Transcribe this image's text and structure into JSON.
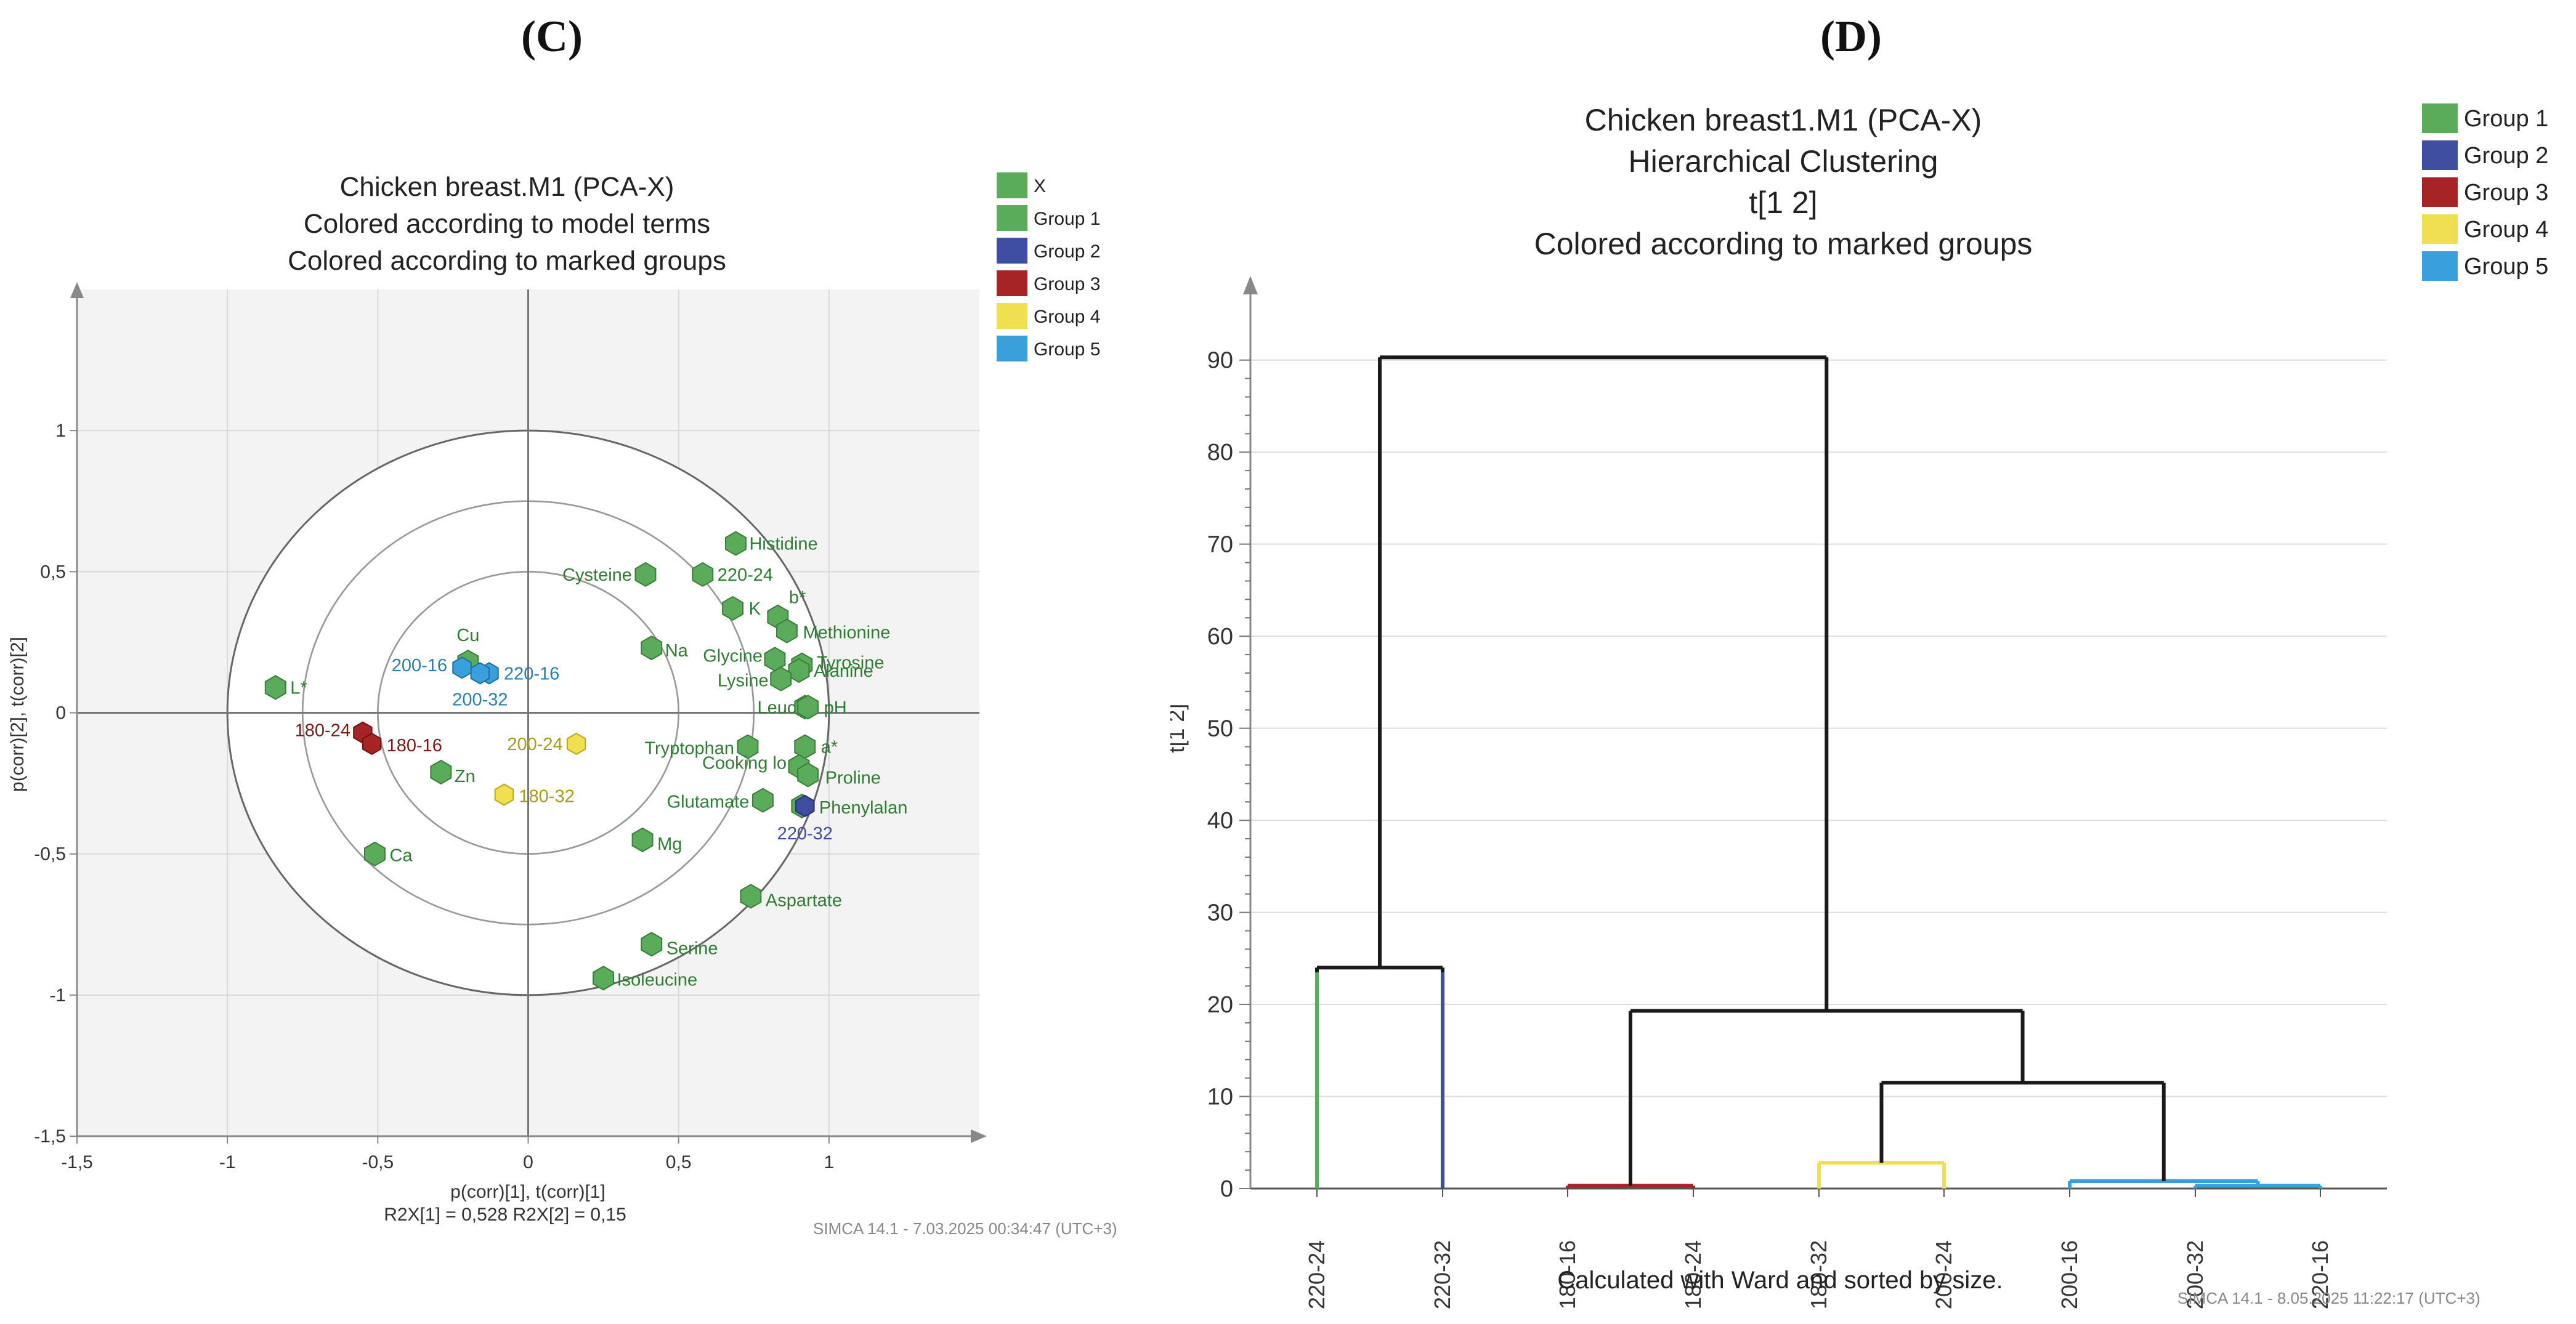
{
  "panel_c": {
    "letter": "(C)",
    "footer": "SIMCA 14.1 - 7.03.2025 00:34:47 (UTC+3)"
  },
  "panel_d": {
    "letter": "(D)",
    "footer": "SIMCA 14.1 - 8.05.2025 11:22:17 (UTC+3)"
  },
  "chart_data": [
    {
      "type": "scatter",
      "title": [
        "Chicken breast.M1 (PCA-X)",
        "Colored according to model terms",
        "Colored according to marked groups"
      ],
      "xlabel": "p(corr)[1], t(corr)[1]",
      "ylabel": "p(corr)[2], t(corr)[2]",
      "stats": "R2X[1] = 0,528  R2X[2] = 0,15",
      "xlim": [
        -1.5,
        1.5
      ],
      "ylim": [
        -1.5,
        1.5
      ],
      "xticks": [
        -1.5,
        -1,
        -0.5,
        0,
        0.5,
        1
      ],
      "yticks": [
        -1.5,
        -1,
        -0.5,
        0,
        0.5,
        1
      ],
      "xtick_labels": [
        "-1,5",
        "-1",
        "-0,5",
        "0",
        "0,5",
        "1"
      ],
      "ytick_labels": [
        "-1,5",
        "-1",
        "-0,5",
        "0",
        "0,5",
        "1"
      ],
      "circles_radius": [
        1.0,
        0.75,
        0.5
      ],
      "colors": {
        "X": "#5aab5a",
        "Group 1": "#5aab5a",
        "Group 2": "#3f4ea0",
        "Group 3": "#a62326",
        "Group 4": "#f0df50",
        "Group 5": "#3aa0dc"
      },
      "label_colors": {
        "X": "#2e7d32",
        "Group 2": "#3f4ea0",
        "Group 3": "#7a1a1a",
        "Group 4": "#a89b1a",
        "Group 5": "#2a7fb0"
      },
      "legend": [
        "X",
        "Group 1",
        "Group 2",
        "Group 3",
        "Group 4",
        "Group 5"
      ],
      "loadings": [
        {
          "label": "Histidine",
          "x": 0.69,
          "y": 0.6
        },
        {
          "label": "Cysteine",
          "x": 0.39,
          "y": 0.49
        },
        {
          "label": "220-24",
          "x": 0.58,
          "y": 0.49
        },
        {
          "label": "b*",
          "x": 0.83,
          "y": 0.34
        },
        {
          "label": "K",
          "x": 0.68,
          "y": 0.37
        },
        {
          "label": "Methionine",
          "x": 0.86,
          "y": 0.29
        },
        {
          "label": "Glycine",
          "x": 0.82,
          "y": 0.19
        },
        {
          "label": "Tyrosine",
          "x": 0.91,
          "y": 0.17
        },
        {
          "label": "Alanine",
          "x": 0.9,
          "y": 0.15
        },
        {
          "label": "Lysine",
          "x": 0.84,
          "y": 0.12
        },
        {
          "label": "Na",
          "x": 0.41,
          "y": 0.23
        },
        {
          "label": "Leucine",
          "x": 0.92,
          "y": 0.02
        },
        {
          "label": "pH",
          "x": 0.93,
          "y": 0.02
        },
        {
          "label": "Cu",
          "x": -0.2,
          "y": 0.18
        },
        {
          "label": "L*",
          "x": -0.84,
          "y": 0.09
        },
        {
          "label": "Tryptophan",
          "x": 0.73,
          "y": -0.12
        },
        {
          "label": "a*",
          "x": 0.92,
          "y": -0.12
        },
        {
          "label": "Cooking loss",
          "x": 0.9,
          "y": -0.19
        },
        {
          "label": "Proline",
          "x": 0.93,
          "y": -0.22
        },
        {
          "label": "Glutamate",
          "x": 0.78,
          "y": -0.31
        },
        {
          "label": "Phenylalanine",
          "x": 0.91,
          "y": -0.33
        },
        {
          "label": "Zn",
          "x": -0.29,
          "y": -0.21
        },
        {
          "label": "Mg",
          "x": 0.38,
          "y": -0.45
        },
        {
          "label": "Ca",
          "x": -0.51,
          "y": -0.5
        },
        {
          "label": "Aspartate",
          "x": 0.74,
          "y": -0.65
        },
        {
          "label": "Serine",
          "x": 0.41,
          "y": -0.82
        },
        {
          "label": "Isoleucine",
          "x": 0.25,
          "y": -0.94
        }
      ],
      "scores": [
        {
          "label": "200-16",
          "group": "Group 5",
          "x": -0.22,
          "y": 0.16
        },
        {
          "label": "220-16",
          "group": "Group 5",
          "x": -0.13,
          "y": 0.14
        },
        {
          "label": "200-32",
          "group": "Group 5",
          "x": -0.16,
          "y": 0.14
        },
        {
          "label": "180-24",
          "group": "Group 3",
          "x": -0.55,
          "y": -0.07
        },
        {
          "label": "180-16",
          "group": "Group 3",
          "x": -0.52,
          "y": -0.11
        },
        {
          "label": "200-24",
          "group": "Group 4",
          "x": 0.16,
          "y": -0.11
        },
        {
          "label": "180-32",
          "group": "Group 4",
          "x": -0.08,
          "y": -0.29
        },
        {
          "label": "220-32",
          "group": "Group 2",
          "x": 0.92,
          "y": -0.33
        }
      ]
    },
    {
      "type": "dendrogram",
      "title": [
        "Chicken breast1.M1 (PCA-X)",
        "Hierarchical Clustering",
        "t[1 2]",
        "Colored according to marked groups"
      ],
      "ylabel": "t[1 2]",
      "xlabel": "Calculated with Ward and sorted by size.",
      "ylim": [
        0,
        95
      ],
      "yticks": [
        0,
        10,
        20,
        30,
        40,
        50,
        60,
        70,
        80,
        90
      ],
      "leaves": [
        "220-24",
        "220-32",
        "180-16",
        "180-24",
        "180-32",
        "200-24",
        "200-16",
        "200-32",
        "220-16"
      ],
      "legend": [
        "Group 1",
        "Group 2",
        "Group 3",
        "Group 4",
        "Group 5"
      ],
      "colors": {
        "Group 1": "#5aab5a",
        "Group 2": "#3f4ea0",
        "Group 3": "#a62326",
        "Group 4": "#f0df50",
        "Group 5": "#3aa0dc",
        "link": "#1a1a1a"
      },
      "leaf_groups": [
        "Group 1",
        "Group 2",
        "Group 3",
        "Group 3",
        "Group 4",
        "Group 4",
        "Group 5",
        "Group 5",
        "Group 5"
      ],
      "merges": [
        {
          "left": 7,
          "right": 8,
          "height": 0.3,
          "color": "Group 5"
        },
        {
          "left": 6,
          "right": "m0",
          "height": 0.8,
          "color": "Group 5"
        },
        {
          "left": 4,
          "right": 5,
          "height": 2.8,
          "color": "Group 4"
        },
        {
          "left": 2,
          "right": 3,
          "height": 0.3,
          "color": "Group 3"
        },
        {
          "left": "m2",
          "right": "m1",
          "height": 11.5,
          "color": "link"
        },
        {
          "left": "m3",
          "right": "m4",
          "height": 19.3,
          "color": "link"
        },
        {
          "left": 0,
          "right": 1,
          "height": 24.0,
          "color": "link"
        },
        {
          "left": "m6",
          "right": "m5",
          "height": 90.3,
          "color": "link"
        }
      ]
    }
  ]
}
